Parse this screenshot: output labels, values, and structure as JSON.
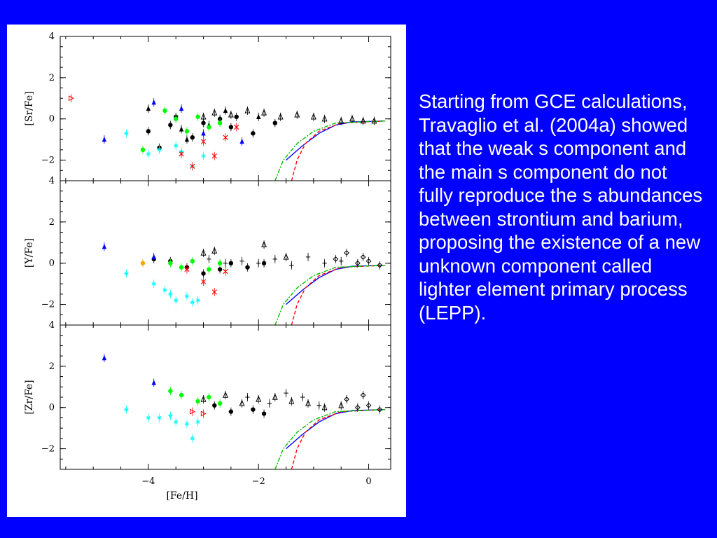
{
  "slide": {
    "background": "#0000ff",
    "text": "Starting from GCE calculations, Travaglio et al. (2004a) showed that the weak s component and the main s component do not fully reproduce the s abundances between strontium and barium, proposing the existence of a new unknown component called lighter element primary process (LEPP)."
  },
  "chart_data": [
    {
      "type": "scatter",
      "ylabel": "[Sr/Fe]",
      "xlabel": "",
      "xlim": [
        -5.6,
        0.4
      ],
      "ylim": [
        -3,
        4
      ],
      "yticks": [
        "4",
        "2",
        "0",
        "−2"
      ],
      "xticks": [],
      "series": [
        {
          "color": "#000000",
          "marker": "triangle-open",
          "points": [
            [
              -3.0,
              0.1
            ],
            [
              -2.8,
              0.3
            ],
            [
              -2.5,
              0.2
            ],
            [
              -2.2,
              0.4
            ],
            [
              -1.9,
              0.3
            ],
            [
              -1.6,
              0.1
            ],
            [
              -1.3,
              0.2
            ],
            [
              -1.0,
              0.1
            ],
            [
              -0.8,
              0.0
            ],
            [
              -0.5,
              -0.1
            ],
            [
              -0.3,
              0.0
            ],
            [
              -0.1,
              -0.1
            ],
            [
              0.1,
              -0.1
            ]
          ]
        },
        {
          "color": "#000000",
          "marker": "dot",
          "points": [
            [
              -4.0,
              -0.6
            ],
            [
              -3.8,
              -1.4
            ],
            [
              -3.6,
              -0.3
            ],
            [
              -3.5,
              0.1
            ],
            [
              -3.2,
              -0.9
            ],
            [
              -3.0,
              -0.2
            ],
            [
              -2.7,
              0.0
            ],
            [
              -2.5,
              -0.4
            ],
            [
              -2.4,
              0.1
            ],
            [
              -2.1,
              -0.7
            ],
            [
              -1.7,
              -0.2
            ]
          ]
        },
        {
          "color": "#000000",
          "marker": "triangle",
          "points": [
            [
              -4.0,
              0.5
            ],
            [
              -3.4,
              -0.5
            ],
            [
              -3.3,
              -1.0
            ],
            [
              -2.9,
              -0.3
            ],
            [
              -2.6,
              0.4
            ],
            [
              -2.0,
              0.1
            ]
          ]
        },
        {
          "color": "#00ffff",
          "marker": "star",
          "points": [
            [
              -4.4,
              -0.7
            ],
            [
              -4.0,
              -1.7
            ],
            [
              -3.8,
              -1.5
            ],
            [
              -3.5,
              -1.3
            ],
            [
              -3.2,
              -2.3
            ],
            [
              -3.0,
              -1.8
            ],
            [
              -3.4,
              -1.6
            ]
          ]
        },
        {
          "color": "#00ff00",
          "marker": "dot",
          "points": [
            [
              -4.1,
              -1.5
            ],
            [
              -3.7,
              0.4
            ],
            [
              -3.5,
              0.0
            ],
            [
              -3.3,
              -0.6
            ],
            [
              -3.1,
              0.1
            ],
            [
              -2.9,
              -0.4
            ],
            [
              -2.7,
              -0.2
            ]
          ]
        },
        {
          "color": "#0000ff",
          "marker": "triangle",
          "points": [
            [
              -4.8,
              -1.0
            ],
            [
              -3.9,
              0.8
            ],
            [
              -3.4,
              0.5
            ],
            [
              -3.0,
              -0.7
            ],
            [
              -2.3,
              -1.1
            ]
          ]
        },
        {
          "color": "#ff0000",
          "marker": "cross",
          "points": [
            [
              -3.4,
              -1.7
            ],
            [
              -3.2,
              -2.3
            ],
            [
              -2.8,
              -1.8
            ],
            [
              -2.6,
              -0.9
            ],
            [
              -2.4,
              -0.4
            ],
            [
              -3.0,
              -1.1
            ]
          ]
        },
        {
          "color": "#ff0000",
          "marker": "tri-right-open",
          "points": [
            [
              -5.4,
              1.0
            ]
          ]
        }
      ],
      "lines": [
        {
          "color": "#0000ff",
          "dash": "",
          "points": [
            [
              -1.5,
              -2.0
            ],
            [
              -1.2,
              -1.3
            ],
            [
              -0.9,
              -0.7
            ],
            [
              -0.6,
              -0.3
            ],
            [
              -0.3,
              -0.15
            ],
            [
              0.3,
              -0.1
            ]
          ]
        },
        {
          "color": "#ff0000",
          "dash": "5,3",
          "points": [
            [
              -1.4,
              -3.0
            ],
            [
              -1.3,
              -2.0
            ],
            [
              -1.15,
              -1.2
            ],
            [
              -0.9,
              -0.6
            ],
            [
              -0.5,
              -0.2
            ],
            [
              0.3,
              -0.1
            ]
          ]
        },
        {
          "color": "#00c000",
          "dash": "6,2,2,2",
          "points": [
            [
              -1.7,
              -3.0
            ],
            [
              -1.55,
              -2.0
            ],
            [
              -1.3,
              -1.2
            ],
            [
              -1.0,
              -0.6
            ],
            [
              -0.6,
              -0.2
            ],
            [
              0.3,
              -0.1
            ]
          ]
        }
      ]
    },
    {
      "type": "scatter",
      "ylabel": "[Y/Fe]",
      "xlabel": "",
      "xlim": [
        -5.6,
        0.4
      ],
      "ylim": [
        -3,
        4
      ],
      "yticks": [
        "4",
        "2",
        "0",
        "−2"
      ],
      "xticks": [],
      "series": [
        {
          "color": "#000000",
          "marker": "plus",
          "points": [
            [
              -2.9,
              0.2
            ],
            [
              -2.6,
              0.0
            ],
            [
              -2.3,
              0.1
            ],
            [
              -2.0,
              0.0
            ],
            [
              -1.7,
              0.2
            ],
            [
              -1.4,
              -0.1
            ],
            [
              -1.1,
              0.3
            ],
            [
              -0.8,
              0.0
            ],
            [
              -0.5,
              0.1
            ]
          ]
        },
        {
          "color": "#000000",
          "marker": "diamond-open",
          "points": [
            [
              -0.6,
              0.2
            ],
            [
              -0.4,
              0.5
            ],
            [
              -0.2,
              0.0
            ],
            [
              0.0,
              0.1
            ],
            [
              0.2,
              -0.1
            ],
            [
              -0.1,
              0.3
            ]
          ]
        },
        {
          "color": "#000000",
          "marker": "dot",
          "points": [
            [
              -3.9,
              0.2
            ],
            [
              -3.6,
              0.1
            ],
            [
              -3.3,
              -0.2
            ],
            [
              -3.0,
              -0.5
            ],
            [
              -2.7,
              -0.3
            ],
            [
              -2.5,
              0.0
            ],
            [
              -2.2,
              -0.2
            ],
            [
              -1.9,
              0.0
            ]
          ]
        },
        {
          "color": "#000000",
          "marker": "triangle-open",
          "points": [
            [
              -3.0,
              0.5
            ],
            [
              -2.8,
              0.6
            ],
            [
              -1.9,
              0.9
            ],
            [
              -1.5,
              0.3
            ]
          ]
        },
        {
          "color": "#00ffff",
          "marker": "star",
          "points": [
            [
              -4.4,
              -0.5
            ],
            [
              -3.9,
              -1.0
            ],
            [
              -3.7,
              -1.3
            ],
            [
              -3.5,
              -1.8
            ],
            [
              -3.3,
              -1.6
            ],
            [
              -3.2,
              -1.9
            ],
            [
              -3.1,
              -1.8
            ],
            [
              -3.6,
              -1.5
            ]
          ]
        },
        {
          "color": "#00ff00",
          "marker": "dot",
          "points": [
            [
              -3.6,
              0.0
            ],
            [
              -3.4,
              -0.2
            ],
            [
              -3.2,
              0.1
            ],
            [
              -2.9,
              -0.3
            ],
            [
              -2.7,
              0.0
            ]
          ]
        },
        {
          "color": "#0000ff",
          "marker": "triangle",
          "points": [
            [
              -4.8,
              0.8
            ],
            [
              -3.9,
              0.3
            ]
          ]
        },
        {
          "color": "#ff0000",
          "marker": "cross",
          "points": [
            [
              -3.0,
              -0.9
            ],
            [
              -2.8,
              -1.4
            ],
            [
              -2.6,
              -0.4
            ],
            [
              -3.3,
              -0.3
            ]
          ]
        },
        {
          "color": "#ffa500",
          "marker": "dot",
          "points": [
            [
              -4.1,
              0.0
            ]
          ]
        }
      ],
      "lines": [
        {
          "color": "#0000ff",
          "dash": "",
          "points": [
            [
              -1.5,
              -2.0
            ],
            [
              -1.2,
              -1.3
            ],
            [
              -0.9,
              -0.7
            ],
            [
              -0.6,
              -0.3
            ],
            [
              -0.3,
              -0.15
            ],
            [
              0.3,
              -0.1
            ]
          ]
        },
        {
          "color": "#ff0000",
          "dash": "5,3",
          "points": [
            [
              -1.4,
              -3.0
            ],
            [
              -1.3,
              -2.0
            ],
            [
              -1.15,
              -1.2
            ],
            [
              -0.9,
              -0.6
            ],
            [
              -0.5,
              -0.2
            ],
            [
              0.3,
              -0.1
            ]
          ]
        },
        {
          "color": "#00c000",
          "dash": "6,2,2,2",
          "points": [
            [
              -1.7,
              -3.0
            ],
            [
              -1.55,
              -2.0
            ],
            [
              -1.3,
              -1.2
            ],
            [
              -1.0,
              -0.6
            ],
            [
              -0.6,
              -0.2
            ],
            [
              0.3,
              -0.1
            ]
          ]
        }
      ]
    },
    {
      "type": "scatter",
      "ylabel": "[Zr/Fe]",
      "xlabel": "[Fe/H]",
      "xlim": [
        -5.6,
        0.4
      ],
      "ylim": [
        -3,
        4
      ],
      "yticks": [
        "4",
        "2",
        "0",
        "−2"
      ],
      "xticks": [
        {
          "value": -4,
          "label": "−4"
        },
        {
          "value": -2,
          "label": "−2"
        },
        {
          "value": 0,
          "label": "0"
        }
      ],
      "series": [
        {
          "color": "#000000",
          "marker": "triangle-open",
          "points": [
            [
              -3.0,
              0.4
            ],
            [
              -2.6,
              0.6
            ],
            [
              -2.3,
              0.2
            ],
            [
              -2.0,
              0.4
            ],
            [
              -1.7,
              0.5
            ],
            [
              -1.4,
              0.3
            ],
            [
              -1.1,
              0.2
            ],
            [
              -0.8,
              0.0
            ],
            [
              -0.5,
              0.1
            ]
          ]
        },
        {
          "color": "#000000",
          "marker": "plus",
          "points": [
            [
              -2.2,
              0.5
            ],
            [
              -1.8,
              0.2
            ],
            [
              -1.5,
              0.7
            ],
            [
              -1.2,
              0.5
            ],
            [
              -0.9,
              0.1
            ]
          ]
        },
        {
          "color": "#000000",
          "marker": "diamond-open",
          "points": [
            [
              -0.4,
              0.4
            ],
            [
              -0.2,
              0.0
            ],
            [
              0.0,
              0.1
            ],
            [
              0.2,
              -0.1
            ],
            [
              -0.1,
              0.6
            ]
          ]
        },
        {
          "color": "#000000",
          "marker": "dot",
          "points": [
            [
              -2.8,
              0.1
            ],
            [
              -2.5,
              -0.2
            ],
            [
              -2.1,
              -0.1
            ],
            [
              -1.9,
              -0.3
            ]
          ]
        },
        {
          "color": "#00ffff",
          "marker": "star",
          "points": [
            [
              -4.4,
              -0.1
            ],
            [
              -4.0,
              -0.5
            ],
            [
              -3.8,
              -0.5
            ],
            [
              -3.6,
              -0.4
            ],
            [
              -3.5,
              -0.7
            ],
            [
              -3.3,
              -0.8
            ],
            [
              -3.2,
              -1.5
            ],
            [
              -3.1,
              -0.7
            ]
          ]
        },
        {
          "color": "#00ff00",
          "marker": "dot",
          "points": [
            [
              -3.6,
              0.8
            ],
            [
              -3.4,
              0.6
            ],
            [
              -3.1,
              0.3
            ],
            [
              -2.9,
              0.5
            ],
            [
              -2.7,
              0.2
            ]
          ]
        },
        {
          "color": "#0000ff",
          "marker": "triangle",
          "points": [
            [
              -4.8,
              2.4
            ],
            [
              -3.9,
              1.2
            ]
          ]
        },
        {
          "color": "#ff0000",
          "marker": "tri-right-open",
          "points": [
            [
              -3.2,
              -0.2
            ],
            [
              -3.0,
              -0.3
            ]
          ]
        }
      ],
      "lines": [
        {
          "color": "#0000ff",
          "dash": "",
          "points": [
            [
              -1.5,
              -2.0
            ],
            [
              -1.2,
              -1.3
            ],
            [
              -0.9,
              -0.7
            ],
            [
              -0.6,
              -0.3
            ],
            [
              -0.3,
              -0.15
            ],
            [
              0.3,
              -0.1
            ]
          ]
        },
        {
          "color": "#ff0000",
          "dash": "5,3",
          "points": [
            [
              -1.4,
              -3.0
            ],
            [
              -1.3,
              -2.0
            ],
            [
              -1.15,
              -1.2
            ],
            [
              -0.9,
              -0.6
            ],
            [
              -0.5,
              -0.2
            ],
            [
              0.3,
              -0.1
            ]
          ]
        },
        {
          "color": "#00c000",
          "dash": "6,2,2,2",
          "points": [
            [
              -1.7,
              -3.0
            ],
            [
              -1.55,
              -2.0
            ],
            [
              -1.3,
              -1.2
            ],
            [
              -1.0,
              -0.6
            ],
            [
              -0.6,
              -0.2
            ],
            [
              0.3,
              -0.1
            ]
          ]
        }
      ]
    }
  ]
}
